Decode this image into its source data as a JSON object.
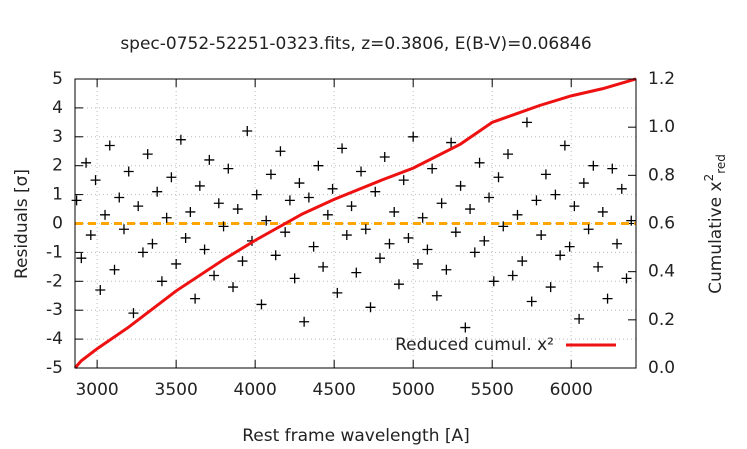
{
  "chart_data": {
    "type": "scatter",
    "title": "spec-0752-52251-0323.fits, z=0.3806, E(B-V)=0.06846",
    "xlabel": "Rest frame wavelength [A]",
    "ylabel": "Residuals [σ]",
    "y2label": {
      "text": "Cumulative x",
      "sup": "2",
      "sub": "red"
    },
    "xlim": [
      2860,
      6410
    ],
    "ylim": [
      -5,
      5
    ],
    "y2lim": [
      0,
      1.2
    ],
    "xticks": [
      3000,
      3500,
      4000,
      4500,
      5000,
      5500,
      6000
    ],
    "yticks": [
      -5,
      -4,
      -3,
      -2,
      -1,
      0,
      1,
      2,
      3,
      4,
      5
    ],
    "y2ticks": [
      {
        "value": 0,
        "label": "0.0"
      },
      0.2,
      0.4,
      0.6,
      0.8,
      {
        "value": 1,
        "label": "1.0"
      },
      1.2
    ],
    "grid": true,
    "legend": "bottom right",
    "reference_line": {
      "value": 0,
      "color": "#ffa500"
    },
    "series": [
      {
        "color": "#000000",
        "marker": "+",
        "x": [
          2870,
          2900,
          2930,
          2960,
          2990,
          3020,
          3050,
          3080,
          3110,
          3140,
          3170,
          3200,
          3230,
          3260,
          3290,
          3320,
          3350,
          3380,
          3410,
          3440,
          3470,
          3500,
          3530,
          3560,
          3590,
          3620,
          3650,
          3680,
          3710,
          3740,
          3770,
          3800,
          3830,
          3860,
          3890,
          3920,
          3950,
          3980,
          4010,
          4040,
          4070,
          4100,
          4130,
          4160,
          4190,
          4220,
          4250,
          4280,
          4310,
          4340,
          4370,
          4400,
          4430,
          4460,
          4490,
          4520,
          4550,
          4580,
          4610,
          4640,
          4670,
          4700,
          4730,
          4760,
          4790,
          4820,
          4850,
          4880,
          4910,
          4940,
          4970,
          5000,
          5030,
          5060,
          5090,
          5120,
          5150,
          5180,
          5210,
          5240,
          5270,
          5300,
          5330,
          5360,
          5390,
          5420,
          5450,
          5480,
          5510,
          5540,
          5570,
          5600,
          5630,
          5660,
          5690,
          5720,
          5750,
          5780,
          5810,
          5840,
          5870,
          5900,
          5930,
          5960,
          5990,
          6020,
          6050,
          6080,
          6110,
          6140,
          6170,
          6200,
          6230,
          6260,
          6290,
          6320,
          6350,
          6380
        ],
        "values": [
          0.8,
          -1.2,
          2.1,
          -0.4,
          1.5,
          -2.3,
          0.3,
          2.7,
          -1.6,
          0.9,
          -0.2,
          1.8,
          -3.1,
          0.6,
          -1.0,
          2.4,
          -0.7,
          1.1,
          -2.0,
          0.2,
          1.6,
          -1.4,
          2.9,
          -0.5,
          0.4,
          -2.6,
          1.3,
          -0.9,
          2.2,
          -1.8,
          0.7,
          -0.1,
          1.9,
          -2.2,
          0.5,
          -1.3,
          3.2,
          -0.6,
          1.0,
          -2.8,
          0.1,
          1.7,
          -1.1,
          2.5,
          -0.3,
          0.8,
          -1.9,
          1.4,
          -3.4,
          0.9,
          -0.8,
          2.0,
          -1.5,
          0.3,
          1.2,
          -2.4,
          2.6,
          -0.4,
          0.6,
          -1.7,
          1.8,
          -0.2,
          -2.9,
          1.1,
          -1.2,
          2.3,
          -0.7,
          0.4,
          -2.1,
          1.5,
          -0.5,
          3.0,
          -1.4,
          0.2,
          -0.9,
          1.9,
          -2.5,
          0.7,
          -1.6,
          2.8,
          -0.3,
          1.3,
          -3.6,
          0.5,
          -1.0,
          2.1,
          -0.6,
          0.9,
          -2.0,
          1.6,
          -0.1,
          2.4,
          -1.8,
          0.3,
          -1.3,
          3.5,
          -2.7,
          0.8,
          -0.4,
          1.7,
          -2.2,
          1.0,
          -1.1,
          2.7,
          -0.8,
          0.6,
          -3.3,
          1.4,
          -0.2,
          2.0,
          -1.5,
          0.4,
          -2.6,
          1.9,
          -0.7,
          1.2,
          -1.9,
          0.1
        ]
      },
      {
        "name": "Reduced cumul. x²",
        "color": "#ee1111",
        "axis": "y2",
        "marker": "line",
        "x": [
          2860,
          2900,
          3000,
          3200,
          3500,
          3800,
          4000,
          4300,
          4500,
          4800,
          5000,
          5300,
          5500,
          5800,
          6000,
          6200,
          6410
        ],
        "values": [
          0,
          0.03,
          0.08,
          0.17,
          0.32,
          0.45,
          0.53,
          0.64,
          0.7,
          0.78,
          0.83,
          0.93,
          1.02,
          1.09,
          1.13,
          1.16,
          1.2
        ]
      }
    ]
  }
}
